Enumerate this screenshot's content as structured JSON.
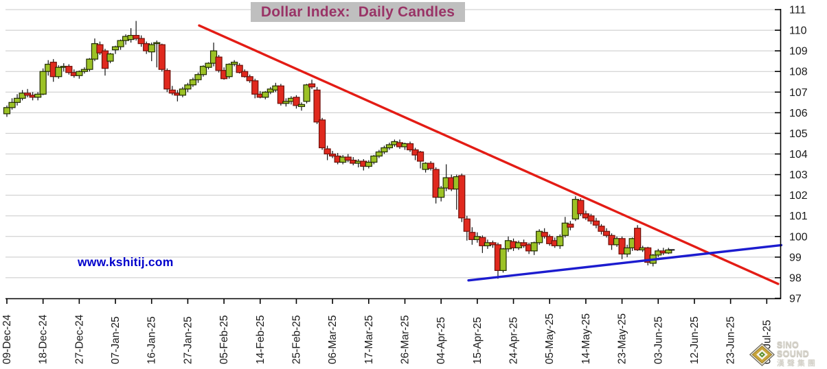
{
  "chart_data": {
    "type": "candlestick",
    "title": "Dollar Index:  Daily Candles",
    "title_bg": "#bfbfbf",
    "title_color": "#993366",
    "watermark": {
      "text": "www.kshitij.com",
      "color": "#0000cc"
    },
    "y_axis": {
      "min": 97,
      "max": 111,
      "tick_step": 1,
      "ticks": [
        97,
        98,
        99,
        100,
        101,
        102,
        103,
        104,
        105,
        106,
        107,
        108,
        109,
        110,
        111
      ]
    },
    "x_axis": {
      "tick_labels": [
        "09-Dec-24",
        "18-Dec-24",
        "27-Dec-24",
        "07-Jan-25",
        "16-Jan-25",
        "27-Jan-25",
        "05-Feb-25",
        "14-Feb-25",
        "25-Feb-25",
        "06-Mar-25",
        "17-Mar-25",
        "26-Mar-25",
        "04-Apr-25",
        "15-Apr-25",
        "24-Apr-25",
        "05-May-25",
        "14-May-25",
        "23-May-25",
        "03-Jun-25",
        "12-Jun-25",
        "23-Jun-25",
        "02-Jul-25"
      ],
      "candles_per_tick": 7,
      "total_slots": 148
    },
    "candles_ohlc": [
      [
        105.95,
        106.35,
        105.8,
        106.25
      ],
      [
        106.25,
        106.7,
        106.15,
        106.5
      ],
      [
        106.5,
        106.9,
        106.35,
        106.7
      ],
      [
        106.7,
        107.1,
        106.6,
        106.95
      ],
      [
        106.95,
        107.15,
        106.75,
        106.85
      ],
      [
        106.85,
        107.0,
        106.6,
        106.75
      ],
      [
        106.75,
        107.0,
        106.6,
        106.9
      ],
      [
        106.9,
        108.15,
        106.85,
        108.0
      ],
      [
        108.0,
        108.55,
        107.8,
        108.35
      ],
      [
        108.45,
        108.6,
        107.5,
        107.75
      ],
      [
        107.75,
        108.3,
        107.65,
        108.2
      ],
      [
        108.2,
        108.4,
        108.0,
        108.25
      ],
      [
        108.25,
        108.35,
        107.85,
        107.95
      ],
      [
        107.95,
        108.1,
        107.7,
        107.8
      ],
      [
        107.8,
        108.05,
        107.65,
        108.0
      ],
      [
        108.0,
        108.2,
        107.9,
        108.1
      ],
      [
        108.1,
        108.65,
        108.0,
        108.6
      ],
      [
        108.6,
        109.6,
        108.5,
        109.35
      ],
      [
        109.3,
        109.45,
        108.8,
        108.9
      ],
      [
        109.0,
        109.1,
        107.8,
        108.15
      ],
      [
        108.5,
        108.9,
        108.4,
        108.85
      ],
      [
        109.05,
        109.25,
        108.85,
        109.2
      ],
      [
        109.2,
        109.55,
        109.05,
        109.5
      ],
      [
        109.5,
        109.8,
        109.3,
        109.7
      ],
      [
        109.55,
        110.1,
        109.4,
        109.75
      ],
      [
        109.75,
        110.45,
        109.5,
        109.6
      ],
      [
        109.6,
        109.75,
        109.2,
        109.35
      ],
      [
        109.35,
        109.45,
        108.85,
        109.0
      ],
      [
        108.95,
        109.4,
        108.5,
        109.3
      ],
      [
        109.35,
        109.5,
        108.2,
        109.4
      ],
      [
        109.3,
        109.35,
        108.0,
        108.1
      ],
      [
        108.05,
        108.15,
        107.0,
        107.15
      ],
      [
        107.1,
        107.3,
        106.85,
        106.95
      ],
      [
        106.95,
        107.1,
        106.55,
        106.85
      ],
      [
        106.85,
        107.25,
        106.75,
        107.15
      ],
      [
        107.15,
        107.45,
        107.0,
        107.35
      ],
      [
        107.35,
        107.7,
        107.25,
        107.6
      ],
      [
        107.6,
        107.95,
        107.45,
        107.85
      ],
      [
        107.85,
        108.3,
        107.75,
        108.25
      ],
      [
        108.2,
        108.45,
        108.1,
        108.4
      ],
      [
        108.4,
        109.4,
        108.25,
        109.0
      ],
      [
        108.7,
        108.8,
        107.95,
        108.05
      ],
      [
        108.05,
        108.2,
        107.6,
        107.65
      ],
      [
        107.75,
        108.4,
        107.65,
        108.35
      ],
      [
        108.35,
        108.55,
        108.25,
        108.45
      ],
      [
        108.3,
        108.4,
        107.9,
        107.95
      ],
      [
        108.0,
        108.1,
        107.7,
        107.75
      ],
      [
        107.75,
        107.85,
        107.45,
        107.55
      ],
      [
        107.55,
        107.65,
        106.7,
        106.9
      ],
      [
        106.9,
        107.05,
        106.7,
        106.75
      ],
      [
        106.75,
        107.05,
        106.65,
        107.0
      ],
      [
        107.0,
        107.25,
        106.9,
        107.15
      ],
      [
        107.1,
        107.45,
        107.0,
        107.3
      ],
      [
        107.3,
        107.4,
        106.35,
        106.45
      ],
      [
        106.45,
        106.7,
        106.3,
        106.55
      ],
      [
        106.55,
        106.8,
        106.4,
        106.7
      ],
      [
        106.75,
        106.85,
        106.2,
        106.35
      ],
      [
        106.3,
        106.5,
        106.1,
        106.4
      ],
      [
        106.55,
        107.4,
        106.45,
        107.35
      ],
      [
        107.4,
        107.6,
        107.15,
        107.25
      ],
      [
        107.1,
        107.25,
        105.45,
        105.55
      ],
      [
        105.65,
        105.75,
        104.2,
        104.3
      ],
      [
        104.25,
        104.4,
        103.7,
        104.0
      ],
      [
        104.0,
        104.15,
        103.8,
        103.9
      ],
      [
        103.9,
        104.05,
        103.5,
        103.6
      ],
      [
        103.6,
        103.95,
        103.5,
        103.85
      ],
      [
        103.85,
        104.0,
        103.6,
        103.7
      ],
      [
        103.7,
        103.85,
        103.45,
        103.55
      ],
      [
        103.55,
        103.75,
        103.35,
        103.65
      ],
      [
        103.65,
        103.75,
        103.2,
        103.4
      ],
      [
        103.4,
        103.7,
        103.3,
        103.6
      ],
      [
        103.6,
        103.95,
        103.5,
        103.9
      ],
      [
        103.9,
        104.2,
        103.8,
        104.1
      ],
      [
        104.1,
        104.4,
        104.0,
        104.3
      ],
      [
        104.3,
        104.55,
        104.2,
        104.45
      ],
      [
        104.45,
        104.7,
        104.35,
        104.6
      ],
      [
        104.55,
        104.7,
        104.25,
        104.35
      ],
      [
        104.35,
        104.55,
        104.2,
        104.5
      ],
      [
        104.5,
        104.6,
        104.1,
        104.2
      ],
      [
        104.2,
        104.3,
        103.7,
        103.95
      ],
      [
        104.1,
        104.15,
        103.3,
        103.65
      ],
      [
        103.25,
        103.6,
        103.1,
        103.55
      ],
      [
        103.55,
        103.65,
        103.2,
        103.3
      ],
      [
        103.25,
        103.35,
        101.6,
        101.9
      ],
      [
        101.9,
        102.45,
        101.7,
        102.35
      ],
      [
        102.35,
        103.5,
        102.2,
        102.85
      ],
      [
        102.85,
        103.0,
        102.2,
        102.3
      ],
      [
        102.3,
        103.0,
        101.3,
        102.9
      ],
      [
        102.95,
        103.05,
        100.7,
        100.9
      ],
      [
        100.85,
        101.0,
        99.8,
        100.25
      ],
      [
        100.2,
        100.45,
        99.6,
        99.85
      ],
      [
        99.85,
        100.2,
        99.7,
        100.0
      ],
      [
        99.95,
        100.05,
        99.2,
        99.55
      ],
      [
        99.55,
        99.85,
        99.4,
        99.7
      ],
      [
        99.7,
        99.8,
        99.45,
        99.6
      ],
      [
        99.6,
        99.7,
        97.95,
        98.35
      ],
      [
        98.35,
        99.45,
        98.25,
        99.4
      ],
      [
        99.4,
        100.0,
        99.25,
        99.8
      ],
      [
        99.75,
        99.9,
        99.3,
        99.45
      ],
      [
        99.45,
        99.8,
        99.35,
        99.7
      ],
      [
        99.7,
        99.85,
        99.45,
        99.55
      ],
      [
        99.6,
        99.7,
        99.15,
        99.3
      ],
      [
        99.3,
        99.75,
        99.1,
        99.7
      ],
      [
        99.7,
        100.35,
        99.6,
        100.25
      ],
      [
        100.2,
        100.4,
        99.9,
        100.0
      ],
      [
        100.0,
        100.1,
        99.55,
        99.65
      ],
      [
        99.8,
        99.95,
        99.45,
        99.55
      ],
      [
        99.55,
        100.1,
        99.4,
        100.0
      ],
      [
        100.05,
        100.95,
        99.95,
        100.65
      ],
      [
        100.6,
        100.75,
        100.3,
        100.45
      ],
      [
        100.85,
        101.95,
        100.75,
        101.8
      ],
      [
        101.75,
        101.85,
        101.0,
        101.1
      ],
      [
        101.1,
        101.25,
        100.8,
        100.9
      ],
      [
        101.0,
        101.1,
        100.6,
        100.75
      ],
      [
        100.75,
        100.9,
        100.4,
        100.55
      ],
      [
        100.5,
        100.6,
        100.1,
        100.25
      ],
      [
        100.25,
        100.4,
        99.95,
        100.05
      ],
      [
        100.05,
        100.15,
        99.35,
        99.6
      ],
      [
        99.6,
        100.0,
        99.5,
        99.9
      ],
      [
        99.9,
        100.0,
        98.9,
        99.15
      ],
      [
        99.15,
        99.6,
        99.0,
        99.45
      ],
      [
        99.45,
        99.95,
        99.3,
        99.9
      ],
      [
        100.4,
        100.55,
        99.3,
        99.35
      ],
      [
        99.35,
        99.55,
        99.25,
        99.45
      ],
      [
        99.45,
        99.5,
        98.6,
        98.75
      ],
      [
        98.7,
        99.15,
        98.55,
        99.1
      ],
      [
        99.1,
        99.4,
        99.0,
        99.3
      ],
      [
        99.3,
        99.45,
        99.1,
        99.2
      ],
      [
        99.2,
        99.45,
        99.15,
        99.35
      ]
    ],
    "trendlines": [
      {
        "name": "resistance-downtrend",
        "color": "#e31c15",
        "width": 3.4,
        "x1_slot": 37.2,
        "price1": 110.23,
        "x2_slot": 149.2,
        "price2": 97.7
      },
      {
        "name": "support-uptrend",
        "color": "#1c1ccf",
        "width": 3.4,
        "x1_slot": 89.3,
        "price1": 97.87,
        "x2_slot": 149.8,
        "price2": 99.58
      }
    ],
    "colors": {
      "up": "#9cc226",
      "up_border": "#1f2a00",
      "down": "#e0291e",
      "down_border": "#6d100a",
      "wick": "#111111",
      "grid": "#c8c8c8",
      "axis": "#000000",
      "label": "#1a1a1a"
    },
    "grid": "on",
    "last_close_marker": 99.35
  },
  "logo": {
    "line1": "SiNO SOUND",
    "line2": "漢聲集團"
  }
}
